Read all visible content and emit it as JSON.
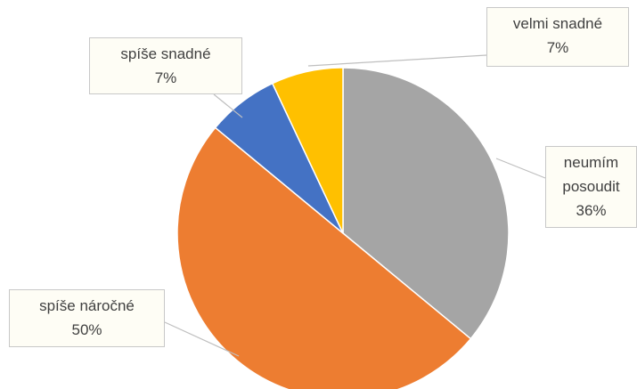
{
  "chart_data": {
    "type": "pie",
    "categories": [
      "neumím posoudit",
      "spíše náročné",
      "spíše snadné",
      "velmi snadné"
    ],
    "values": [
      36,
      50,
      7,
      7
    ],
    "value_labels": [
      "36%",
      "50%",
      "7%",
      "7%"
    ],
    "colors": [
      "#a5a5a5",
      "#ed7d31",
      "#4472c4",
      "#ffc000"
    ]
  }
}
